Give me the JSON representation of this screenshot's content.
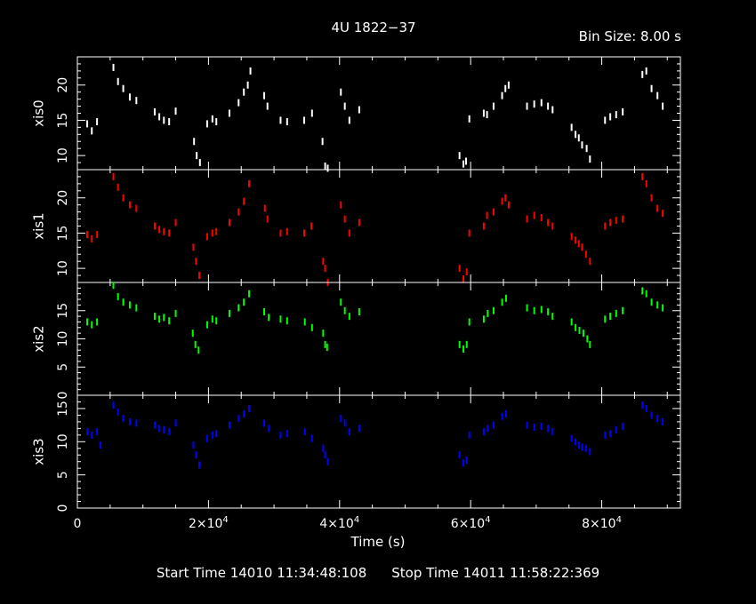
{
  "chart_data": {
    "type": "scatter",
    "title": "4U 1822−37",
    "subtitle": "Bin Size:  8.00  s",
    "xlabel": "Time (s)",
    "xlim": [
      0,
      92000
    ],
    "x_ticks": [
      {
        "value": 0,
        "mant": "0",
        "exp": ""
      },
      {
        "value": 20000,
        "mant": "2×10",
        "exp": "4"
      },
      {
        "value": 40000,
        "mant": "4×10",
        "exp": "4"
      },
      {
        "value": 60000,
        "mant": "6×10",
        "exp": "4"
      },
      {
        "value": 80000,
        "mant": "8×10",
        "exp": "4"
      }
    ],
    "grid": false,
    "panels": [
      {
        "name": "xis0",
        "color": "#ffffff",
        "ylim": [
          8,
          24
        ],
        "yticks": [
          10,
          15,
          20
        ],
        "points": [
          [
            1500,
            14.5
          ],
          [
            2200,
            13.5
          ],
          [
            3000,
            14.8
          ],
          [
            5500,
            22.5
          ],
          [
            6200,
            20.5
          ],
          [
            7000,
            19.5
          ],
          [
            8000,
            18.3
          ],
          [
            9000,
            17.8
          ],
          [
            11800,
            16.2
          ],
          [
            12500,
            15.5
          ],
          [
            13200,
            15
          ],
          [
            14000,
            14.8
          ],
          [
            15000,
            16.3
          ],
          [
            17800,
            12
          ],
          [
            18200,
            10
          ],
          [
            18700,
            9
          ],
          [
            19800,
            14.5
          ],
          [
            20600,
            15.2
          ],
          [
            21200,
            14.8
          ],
          [
            23200,
            16
          ],
          [
            24600,
            17.5
          ],
          [
            25400,
            19
          ],
          [
            26000,
            20
          ],
          [
            26400,
            22
          ],
          [
            28500,
            18.5
          ],
          [
            29000,
            17
          ],
          [
            31000,
            15
          ],
          [
            32000,
            14.8
          ],
          [
            34600,
            15
          ],
          [
            35800,
            16
          ],
          [
            37400,
            12
          ],
          [
            37800,
            8.5
          ],
          [
            38200,
            8.2
          ],
          [
            40200,
            19
          ],
          [
            40800,
            17
          ],
          [
            41500,
            15
          ],
          [
            43000,
            16.5
          ],
          [
            58300,
            10
          ],
          [
            58900,
            8.8
          ],
          [
            59300,
            9.2
          ],
          [
            59800,
            15.2
          ],
          [
            62000,
            16
          ],
          [
            62500,
            15.8
          ],
          [
            63500,
            17
          ],
          [
            64800,
            18.5
          ],
          [
            65300,
            19.5
          ],
          [
            65800,
            20
          ],
          [
            68600,
            17
          ],
          [
            69700,
            17.3
          ],
          [
            70800,
            17.5
          ],
          [
            71800,
            17
          ],
          [
            72500,
            16.5
          ],
          [
            75400,
            14
          ],
          [
            76000,
            13
          ],
          [
            76500,
            12.5
          ],
          [
            77000,
            11.5
          ],
          [
            77700,
            11
          ],
          [
            78200,
            9.5
          ],
          [
            80500,
            15
          ],
          [
            81300,
            15.5
          ],
          [
            82200,
            15.8
          ],
          [
            83200,
            16.2
          ],
          [
            86200,
            21.5
          ],
          [
            86800,
            22
          ],
          [
            87600,
            19.5
          ],
          [
            88500,
            18.5
          ],
          [
            89300,
            17
          ]
        ]
      },
      {
        "name": "xis1",
        "color": "#ff0000",
        "ylim": [
          8,
          24
        ],
        "yticks": [
          10,
          15,
          20
        ],
        "points": [
          [
            1500,
            14.8
          ],
          [
            2200,
            14.2
          ],
          [
            3000,
            14.8
          ],
          [
            5500,
            23
          ],
          [
            6200,
            21.5
          ],
          [
            7000,
            20
          ],
          [
            8000,
            19
          ],
          [
            9000,
            18.5
          ],
          [
            11800,
            16
          ],
          [
            12500,
            15.5
          ],
          [
            13200,
            15.2
          ],
          [
            14000,
            15
          ],
          [
            15000,
            16.5
          ],
          [
            17700,
            13
          ],
          [
            18100,
            11
          ],
          [
            18600,
            9
          ],
          [
            19800,
            14.5
          ],
          [
            20600,
            15
          ],
          [
            21200,
            15.2
          ],
          [
            23200,
            16.5
          ],
          [
            24600,
            18
          ],
          [
            25400,
            19.5
          ],
          [
            26200,
            22
          ],
          [
            28600,
            18.5
          ],
          [
            29000,
            17
          ],
          [
            31000,
            15
          ],
          [
            32000,
            15.2
          ],
          [
            34600,
            15
          ],
          [
            35700,
            16
          ],
          [
            37500,
            11
          ],
          [
            37800,
            10
          ],
          [
            38200,
            8
          ],
          [
            40200,
            19
          ],
          [
            40800,
            17
          ],
          [
            41500,
            15
          ],
          [
            43000,
            16.5
          ],
          [
            58300,
            10
          ],
          [
            58900,
            8.5
          ],
          [
            59400,
            9.5
          ],
          [
            59800,
            15
          ],
          [
            62000,
            16
          ],
          [
            62500,
            17.5
          ],
          [
            63500,
            18
          ],
          [
            64800,
            19.5
          ],
          [
            65300,
            20
          ],
          [
            65800,
            19
          ],
          [
            68600,
            17
          ],
          [
            69700,
            17.5
          ],
          [
            70800,
            17.2
          ],
          [
            71800,
            16.5
          ],
          [
            72500,
            16
          ],
          [
            75400,
            14.5
          ],
          [
            76000,
            14
          ],
          [
            76500,
            13.5
          ],
          [
            77000,
            13
          ],
          [
            77600,
            12
          ],
          [
            78200,
            11
          ],
          [
            80500,
            16
          ],
          [
            81300,
            16.5
          ],
          [
            82200,
            16.8
          ],
          [
            83200,
            17
          ],
          [
            86200,
            23
          ],
          [
            86800,
            22
          ],
          [
            87600,
            20
          ],
          [
            88500,
            18.5
          ],
          [
            89300,
            17.8
          ]
        ]
      },
      {
        "name": "xis2",
        "color": "#00ff00",
        "ylim": [
          0,
          20
        ],
        "yticks": [
          0,
          5,
          10,
          15
        ],
        "points": [
          [
            1500,
            13
          ],
          [
            2200,
            12.5
          ],
          [
            3000,
            13
          ],
          [
            5500,
            19.5
          ],
          [
            6200,
            17.5
          ],
          [
            7000,
            16.5
          ],
          [
            8000,
            16
          ],
          [
            9000,
            15.5
          ],
          [
            11800,
            14
          ],
          [
            12500,
            13.5
          ],
          [
            13200,
            13.8
          ],
          [
            14000,
            13.2
          ],
          [
            15000,
            14.5
          ],
          [
            17600,
            11
          ],
          [
            18000,
            9
          ],
          [
            18500,
            8
          ],
          [
            19800,
            12.5
          ],
          [
            20600,
            13.5
          ],
          [
            21200,
            13.2
          ],
          [
            23200,
            14.5
          ],
          [
            24600,
            15.5
          ],
          [
            25400,
            16.5
          ],
          [
            26200,
            18
          ],
          [
            28500,
            14.8
          ],
          [
            29200,
            13.8
          ],
          [
            31000,
            13.5
          ],
          [
            32000,
            13.2
          ],
          [
            34700,
            13
          ],
          [
            35800,
            12
          ],
          [
            37500,
            11
          ],
          [
            37800,
            9
          ],
          [
            38100,
            8.5
          ],
          [
            40200,
            16.5
          ],
          [
            40800,
            15
          ],
          [
            41500,
            14
          ],
          [
            43000,
            14.8
          ],
          [
            58300,
            9
          ],
          [
            58900,
            8.2
          ],
          [
            59400,
            9
          ],
          [
            59800,
            13
          ],
          [
            62000,
            13.5
          ],
          [
            62600,
            14.5
          ],
          [
            63500,
            15
          ],
          [
            64800,
            16.5
          ],
          [
            65400,
            17.2
          ],
          [
            68600,
            15.5
          ],
          [
            69700,
            15
          ],
          [
            70800,
            15.2
          ],
          [
            71800,
            14.8
          ],
          [
            72500,
            14
          ],
          [
            75400,
            13
          ],
          [
            76000,
            12
          ],
          [
            76600,
            11.5
          ],
          [
            77200,
            11
          ],
          [
            77800,
            10
          ],
          [
            78200,
            9
          ],
          [
            80500,
            13.5
          ],
          [
            81300,
            14
          ],
          [
            82200,
            14.5
          ],
          [
            83200,
            15
          ],
          [
            86200,
            18.5
          ],
          [
            86800,
            18
          ],
          [
            87600,
            16.5
          ],
          [
            88500,
            16
          ],
          [
            89300,
            15.5
          ]
        ]
      },
      {
        "name": "xis3",
        "color": "#0000ff",
        "ylim": [
          0,
          17
        ],
        "yticks": [
          0,
          5,
          10,
          15
        ],
        "points": [
          [
            1500,
            11.5
          ],
          [
            2200,
            11
          ],
          [
            3000,
            11.5
          ],
          [
            3500,
            9.5
          ],
          [
            5500,
            15.5
          ],
          [
            6200,
            14.5
          ],
          [
            7000,
            13.5
          ],
          [
            8000,
            13
          ],
          [
            9000,
            12.8
          ],
          [
            11800,
            12.5
          ],
          [
            12500,
            12
          ],
          [
            13200,
            11.8
          ],
          [
            14000,
            11.5
          ],
          [
            15000,
            12.8
          ],
          [
            17700,
            9.5
          ],
          [
            18100,
            8
          ],
          [
            18600,
            6.5
          ],
          [
            19800,
            10.5
          ],
          [
            20600,
            11
          ],
          [
            21200,
            11.2
          ],
          [
            23200,
            12.5
          ],
          [
            24600,
            13.5
          ],
          [
            25400,
            14.2
          ],
          [
            26200,
            15
          ],
          [
            28500,
            12.8
          ],
          [
            29200,
            12
          ],
          [
            31000,
            11
          ],
          [
            32000,
            11.2
          ],
          [
            34700,
            11.5
          ],
          [
            35800,
            10.5
          ],
          [
            37500,
            9
          ],
          [
            37800,
            8
          ],
          [
            38200,
            7
          ],
          [
            40200,
            13.5
          ],
          [
            40800,
            12.8
          ],
          [
            41500,
            11.5
          ],
          [
            43000,
            12
          ],
          [
            58300,
            8
          ],
          [
            58900,
            6.8
          ],
          [
            59400,
            7.2
          ],
          [
            59800,
            11
          ],
          [
            62000,
            11.5
          ],
          [
            62600,
            12
          ],
          [
            63500,
            12.5
          ],
          [
            64800,
            13.8
          ],
          [
            65400,
            14.2
          ],
          [
            68600,
            12.5
          ],
          [
            69700,
            12.2
          ],
          [
            70800,
            12.3
          ],
          [
            71800,
            12
          ],
          [
            72500,
            11.5
          ],
          [
            75400,
            10.5
          ],
          [
            76000,
            10
          ],
          [
            76500,
            9.5
          ],
          [
            77000,
            9.2
          ],
          [
            77600,
            9
          ],
          [
            78200,
            8.5
          ],
          [
            80500,
            11
          ],
          [
            81300,
            11.2
          ],
          [
            82200,
            11.8
          ],
          [
            83200,
            12.3
          ],
          [
            86200,
            15.5
          ],
          [
            86800,
            15
          ],
          [
            87600,
            14
          ],
          [
            88500,
            13.5
          ],
          [
            89300,
            13
          ]
        ]
      }
    ]
  },
  "footer": {
    "start_time": "Start Time 14010 11:34:48:108",
    "stop_time": "Stop Time 14011 11:58:22:369"
  }
}
